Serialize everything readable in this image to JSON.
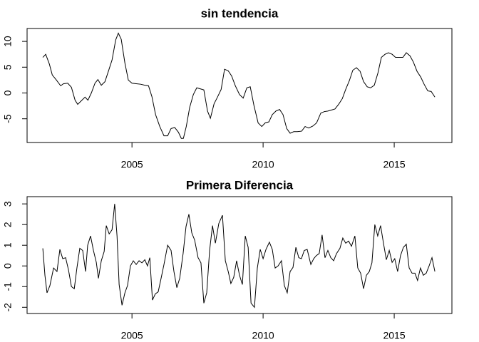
{
  "chart_data": [
    {
      "type": "line",
      "title": "sin tendencia",
      "color": "#000000",
      "xlim": [
        2001.0,
        2017.2
      ],
      "ylim": [
        -9.6,
        12.5
      ],
      "xticks": [
        2005,
        2010,
        2015
      ],
      "yticks": [
        -5,
        0,
        5,
        10
      ],
      "x": [
        2001.6,
        2001.71,
        2001.85,
        2001.96,
        2002.12,
        2002.28,
        2002.39,
        2002.55,
        2002.69,
        2002.83,
        2002.93,
        2003.07,
        2003.21,
        2003.32,
        2003.45,
        2003.59,
        2003.7,
        2003.83,
        2003.97,
        2004.1,
        2004.24,
        2004.38,
        2004.48,
        2004.59,
        2004.73,
        2004.86,
        2005.0,
        2005.16,
        2005.33,
        2005.49,
        2005.63,
        2005.76,
        2005.9,
        2006.06,
        2006.22,
        2006.36,
        2006.49,
        2006.63,
        2006.77,
        2006.88,
        2006.96,
        2007.07,
        2007.2,
        2007.34,
        2007.47,
        2007.61,
        2007.74,
        2007.88,
        2007.99,
        2008.13,
        2008.26,
        2008.4,
        2008.53,
        2008.67,
        2008.8,
        2008.94,
        2009.1,
        2009.24,
        2009.38,
        2009.51,
        2009.65,
        2009.81,
        2009.95,
        2010.08,
        2010.22,
        2010.35,
        2010.49,
        2010.63,
        2010.76,
        2010.9,
        2011.03,
        2011.17,
        2011.3,
        2011.47,
        2011.6,
        2011.74,
        2011.9,
        2012.04,
        2012.2,
        2012.34,
        2012.47,
        2012.61,
        2012.74,
        2012.88,
        2013.02,
        2013.15,
        2013.29,
        2013.42,
        2013.56,
        2013.7,
        2013.83,
        2013.97,
        2014.1,
        2014.24,
        2014.38,
        2014.51,
        2014.65,
        2014.78,
        2014.92,
        2015.05,
        2015.19,
        2015.33,
        2015.46,
        2015.6,
        2015.73,
        2015.87,
        2016.01,
        2016.14,
        2016.28,
        2016.41,
        2016.55
      ],
      "values": [
        6.9,
        7.5,
        5.6,
        3.5,
        2.5,
        1.4,
        1.8,
        1.9,
        1.1,
        -1.4,
        -2.2,
        -1.5,
        -0.8,
        -1.4,
        0,
        1.9,
        2.6,
        1.5,
        2.2,
        4.2,
        6.4,
        10.3,
        11.6,
        10.4,
        5.8,
        2.5,
        1.9,
        1.8,
        1.7,
        1.5,
        1.4,
        -0.7,
        -4.2,
        -6.5,
        -8.3,
        -8.3,
        -6.9,
        -6.7,
        -7.6,
        -8.8,
        -8.8,
        -6.5,
        -2.8,
        -0.3,
        1.0,
        0.8,
        0.6,
        -3.5,
        -4.9,
        -2.1,
        -0.8,
        0.7,
        4.6,
        4.3,
        3.3,
        1.4,
        -0.3,
        -1.0,
        1.0,
        1.2,
        -2.4,
        -5.8,
        -6.5,
        -5.8,
        -5.6,
        -4.2,
        -3.5,
        -3.2,
        -4.2,
        -6.9,
        -7.8,
        -7.5,
        -7.5,
        -7.4,
        -6.5,
        -6.8,
        -6.4,
        -5.8,
        -3.9,
        -3.6,
        -3.5,
        -3.3,
        -3.1,
        -2.2,
        -1.1,
        0.7,
        2.4,
        4.4,
        4.9,
        4.2,
        2.2,
        1.2,
        1.0,
        1.5,
        3.9,
        6.9,
        7.5,
        7.8,
        7.5,
        6.9,
        6.9,
        6.9,
        7.8,
        7.2,
        6.0,
        4.2,
        3.1,
        1.7,
        0.4,
        0.3,
        -0.8
      ]
    },
    {
      "type": "line",
      "title": "Primera Diferencia",
      "color": "#000000",
      "xlim": [
        2001.0,
        2017.2
      ],
      "ylim": [
        -2.3,
        3.35
      ],
      "xticks": [
        2005,
        2010,
        2015
      ],
      "yticks": [
        -2,
        -1,
        0,
        1,
        2,
        3
      ],
      "x": [
        2001.6,
        2001.68,
        2001.76,
        2001.87,
        2002.01,
        2002.14,
        2002.25,
        2002.36,
        2002.47,
        2002.58,
        2002.69,
        2002.8,
        2002.9,
        2003.01,
        2003.12,
        2003.23,
        2003.31,
        2003.42,
        2003.53,
        2003.64,
        2003.72,
        2003.83,
        2003.94,
        2004.02,
        2004.13,
        2004.24,
        2004.34,
        2004.43,
        2004.51,
        2004.62,
        2004.73,
        2004.83,
        2004.94,
        2005.05,
        2005.16,
        2005.27,
        2005.38,
        2005.49,
        2005.59,
        2005.68,
        2005.78,
        2005.89,
        2006.0,
        2006.11,
        2006.22,
        2006.36,
        2006.49,
        2006.6,
        2006.71,
        2006.82,
        2006.95,
        2007.06,
        2007.17,
        2007.28,
        2007.39,
        2007.52,
        2007.63,
        2007.74,
        2007.85,
        2007.96,
        2008.07,
        2008.18,
        2008.31,
        2008.45,
        2008.56,
        2008.67,
        2008.77,
        2008.88,
        2008.99,
        2009.1,
        2009.21,
        2009.32,
        2009.43,
        2009.54,
        2009.67,
        2009.78,
        2009.89,
        2010.0,
        2010.11,
        2010.24,
        2010.35,
        2010.46,
        2010.57,
        2010.7,
        2010.81,
        2010.92,
        2011.03,
        2011.14,
        2011.25,
        2011.36,
        2011.46,
        2011.57,
        2011.68,
        2011.82,
        2011.93,
        2012.03,
        2012.14,
        2012.25,
        2012.36,
        2012.47,
        2012.58,
        2012.69,
        2012.8,
        2012.93,
        2013.04,
        2013.15,
        2013.26,
        2013.37,
        2013.5,
        2013.61,
        2013.72,
        2013.83,
        2013.94,
        2014.05,
        2014.15,
        2014.26,
        2014.37,
        2014.48,
        2014.59,
        2014.7,
        2014.81,
        2014.92,
        2015.02,
        2015.13,
        2015.24,
        2015.35,
        2015.46,
        2015.57,
        2015.68,
        2015.79,
        2015.89,
        2016.0,
        2016.11,
        2016.22,
        2016.33,
        2016.44,
        2016.55
      ],
      "values": [
        0.85,
        -0.45,
        -1.3,
        -0.95,
        -0.1,
        -0.27,
        0.8,
        0.35,
        0.4,
        -0.2,
        -1.0,
        -1.1,
        -0.1,
        0.85,
        0.75,
        -0.27,
        1.0,
        1.45,
        0.75,
        0.17,
        -0.6,
        0.25,
        0.7,
        1.95,
        1.55,
        1.75,
        3.0,
        1.45,
        -0.9,
        -1.9,
        -1.3,
        -0.95,
        0,
        0.25,
        0.07,
        0.25,
        0.15,
        0.3,
        0,
        0.4,
        -1.65,
        -1.35,
        -1.25,
        -0.6,
        0.07,
        1.0,
        0.75,
        -0.27,
        -1.05,
        -0.6,
        0.6,
        1.9,
        2.5,
        1.6,
        1.25,
        0.4,
        0.15,
        -1.8,
        -1.3,
        0.75,
        1.95,
        1.1,
        2.05,
        2.45,
        0.25,
        -0.27,
        -0.85,
        -0.55,
        0.25,
        -0.45,
        -0.9,
        1.45,
        0.9,
        -1.8,
        -2.0,
        -0.1,
        0.8,
        0.35,
        0.8,
        1.15,
        0.8,
        -0.1,
        0,
        0.25,
        -0.95,
        -1.3,
        -0.27,
        -0.07,
        0.9,
        0.4,
        0.35,
        0.75,
        0.8,
        0.07,
        0.35,
        0.5,
        0.6,
        1.5,
        0.4,
        0.75,
        0.4,
        0.25,
        0.6,
        0.85,
        1.35,
        1.1,
        1.2,
        0.95,
        1.45,
        -0.1,
        -0.35,
        -1.1,
        -0.45,
        -0.27,
        0.15,
        2.0,
        1.45,
        1.95,
        1.1,
        0.3,
        0.75,
        0.17,
        0.35,
        -0.27,
        0.5,
        0.9,
        1.05,
        -0.1,
        -0.35,
        -0.35,
        -0.7,
        -0.1,
        -0.45,
        -0.35,
        0,
        0.4,
        -0.27
      ]
    }
  ]
}
